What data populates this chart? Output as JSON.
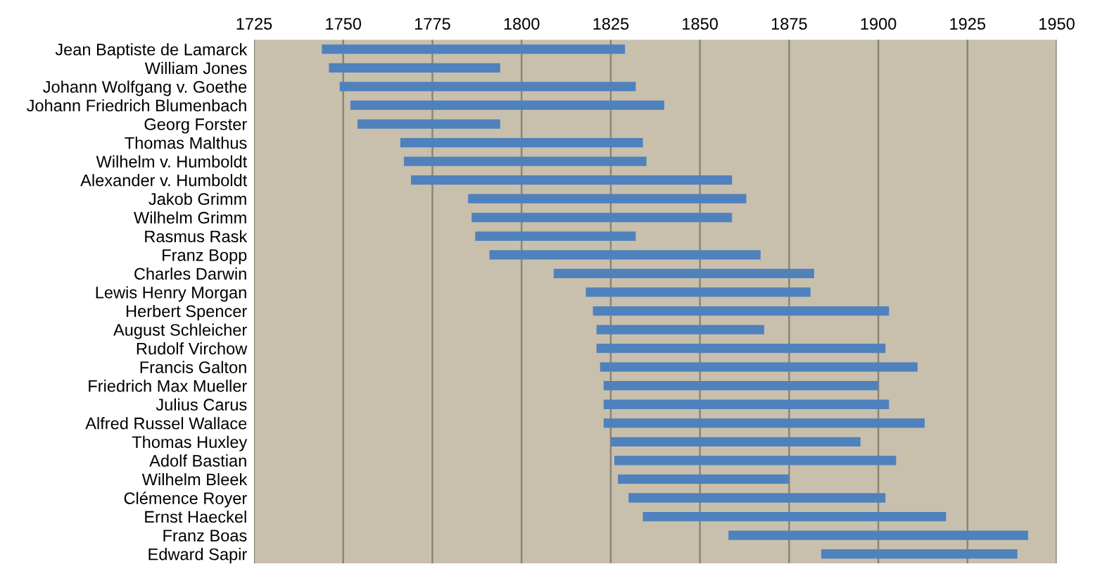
{
  "chart_data": {
    "type": "bar",
    "orientation": "horizontal",
    "color": "#4f81bd",
    "grid": "x",
    "xlim": [
      1725,
      1950
    ],
    "xticks": [
      1725,
      1750,
      1775,
      1800,
      1825,
      1850,
      1875,
      1900,
      1925,
      1950
    ],
    "categories": [
      "Jean Baptiste de Lamarck",
      "William Jones",
      "Johann Wolfgang v. Goethe",
      "Johann Friedrich Blumenbach",
      "Georg Forster",
      "Thomas Malthus",
      "Wilhelm v. Humboldt",
      "Alexander v. Humboldt",
      "Jakob Grimm",
      "Wilhelm Grimm",
      "Rasmus Rask",
      "Franz Bopp",
      "Charles Darwin",
      "Lewis Henry Morgan",
      "Herbert Spencer",
      "August Schleicher",
      "Rudolf Virchow",
      "Francis Galton",
      "Friedrich Max Mueller",
      "Julius Carus",
      "Alfred Russel Wallace",
      "Thomas Huxley",
      "Adolf Bastian",
      "Wilhelm Bleek",
      "Clémence Royer",
      "Ernst Haeckel",
      "Franz Boas",
      "Edward Sapir"
    ],
    "base": [
      1744,
      1746,
      1749,
      1752,
      1754,
      1766,
      1767,
      1769,
      1785,
      1786,
      1787,
      1791,
      1809,
      1818,
      1820,
      1821,
      1821,
      1822,
      1823,
      1823,
      1823,
      1825,
      1826,
      1827,
      1830,
      1834,
      1858,
      1884
    ],
    "values": [
      85,
      48,
      83,
      88,
      40,
      68,
      68,
      90,
      78,
      73,
      45,
      76,
      73,
      63,
      83,
      47,
      81,
      89,
      77,
      80,
      90,
      70,
      79,
      48,
      72,
      85,
      84,
      55
    ]
  }
}
